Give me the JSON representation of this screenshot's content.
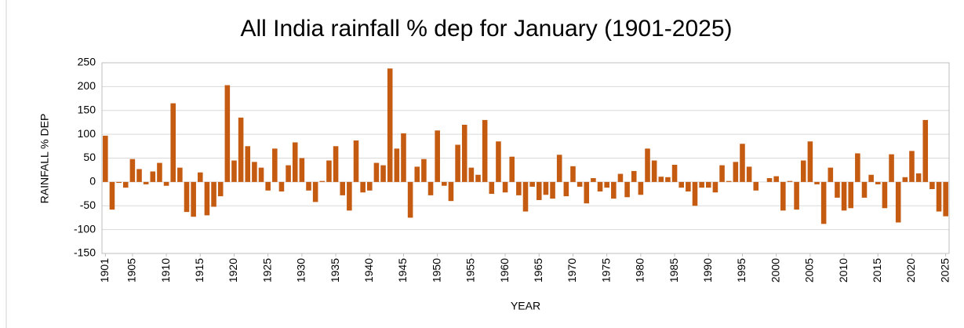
{
  "chart_data": {
    "type": "bar",
    "title": "All India rainfall % dep for January (1901-2025)",
    "x_label": "YEAR",
    "y_label": "RAINFALL % DEP",
    "color": "#c55a11",
    "grid": true,
    "x": [
      1901,
      1902,
      1903,
      1904,
      1905,
      1906,
      1907,
      1908,
      1909,
      1910,
      1911,
      1912,
      1913,
      1914,
      1915,
      1916,
      1917,
      1918,
      1919,
      1920,
      1921,
      1922,
      1923,
      1924,
      1925,
      1926,
      1927,
      1928,
      1929,
      1930,
      1931,
      1932,
      1933,
      1934,
      1935,
      1936,
      1937,
      1938,
      1939,
      1940,
      1941,
      1942,
      1943,
      1944,
      1945,
      1946,
      1947,
      1948,
      1949,
      1950,
      1951,
      1952,
      1953,
      1954,
      1955,
      1956,
      1957,
      1958,
      1959,
      1960,
      1961,
      1962,
      1963,
      1964,
      1965,
      1966,
      1967,
      1968,
      1969,
      1970,
      1971,
      1972,
      1973,
      1974,
      1975,
      1976,
      1977,
      1978,
      1979,
      1980,
      1981,
      1982,
      1983,
      1984,
      1985,
      1986,
      1987,
      1988,
      1989,
      1990,
      1991,
      1992,
      1993,
      1994,
      1995,
      1996,
      1997,
      1998,
      1999,
      2000,
      2001,
      2002,
      2003,
      2004,
      2005,
      2006,
      2007,
      2008,
      2009,
      2010,
      2011,
      2012,
      2013,
      2014,
      2015,
      2016,
      2017,
      2018,
      2019,
      2020,
      2021,
      2022,
      2023,
      2024,
      2025
    ],
    "values": [
      97,
      -58,
      -2,
      -12,
      48,
      27,
      -5,
      22,
      40,
      -8,
      165,
      30,
      -63,
      -73,
      20,
      -70,
      -52,
      -30,
      203,
      45,
      135,
      75,
      42,
      30,
      -18,
      70,
      -20,
      35,
      83,
      50,
      -18,
      -42,
      2,
      45,
      75,
      -28,
      -60,
      87,
      -22,
      -18,
      40,
      35,
      238,
      70,
      102,
      -75,
      32,
      48,
      -28,
      108,
      -8,
      -40,
      78,
      120,
      30,
      15,
      130,
      -25,
      85,
      -22,
      53,
      -28,
      -62,
      -10,
      -38,
      -27,
      -35,
      57,
      -30,
      33,
      -10,
      -45,
      8,
      -20,
      -12,
      -35,
      17,
      -32,
      23,
      -27,
      70,
      45,
      11,
      10,
      36,
      -12,
      -20,
      -50,
      -12,
      -12,
      -22,
      35,
      2,
      42,
      80,
      32,
      -18,
      0,
      8,
      12,
      -60,
      2,
      -58,
      45,
      85,
      -5,
      -88,
      30,
      -33,
      -60,
      -55,
      60,
      -33,
      15,
      -5,
      -55,
      58,
      -85,
      10,
      65,
      18,
      130,
      -15,
      -62,
      -72
    ],
    "xlim": [
      1900.5,
      2025.5
    ],
    "xticks": [
      1901,
      1905,
      1910,
      1915,
      1920,
      1925,
      1930,
      1935,
      1940,
      1945,
      1950,
      1955,
      1960,
      1965,
      1970,
      1975,
      1980,
      1985,
      1990,
      1995,
      2000,
      2005,
      2010,
      2015,
      2020,
      2025
    ],
    "ylim": [
      -150,
      250
    ],
    "yticks": [
      -150,
      -100,
      -50,
      0,
      50,
      100,
      150,
      200,
      250
    ]
  }
}
